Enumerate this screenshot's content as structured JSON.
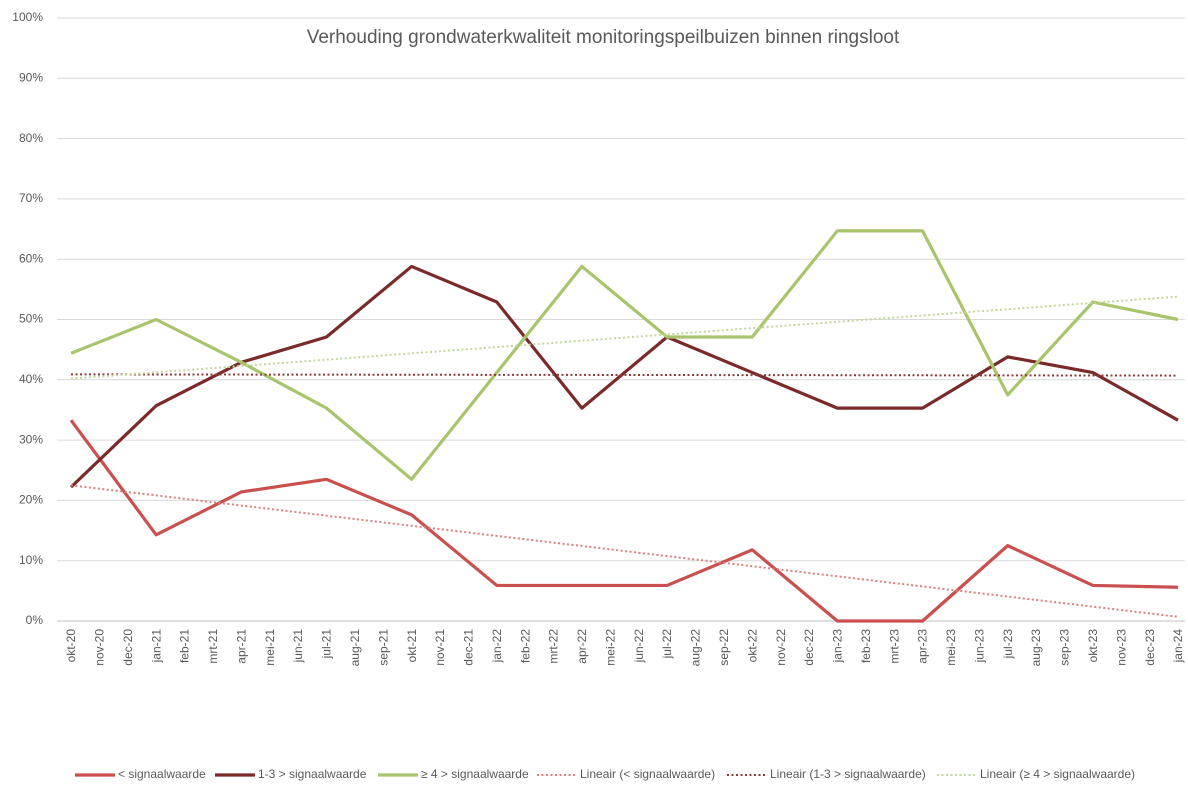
{
  "chart_data": {
    "type": "line",
    "title": "Verhouding grondwaterkwaliteit monitoringspeilbuizen binnen ringsloot",
    "categories": [
      "okt-20",
      "nov-20",
      "dec-20",
      "jan-21",
      "feb-21",
      "mrt-21",
      "apr-21",
      "mei-21",
      "jun-21",
      "jul-21",
      "aug-21",
      "sep-21",
      "okt-21",
      "nov-21",
      "dec-21",
      "jan-22",
      "feb-22",
      "mrt-22",
      "apr-22",
      "mei-22",
      "jun-22",
      "jul-22",
      "aug-22",
      "sep-22",
      "okt-22",
      "nov-22",
      "dec-22",
      "jan-23",
      "feb-23",
      "mrt-23",
      "apr-23",
      "mei-23",
      "jun-23",
      "jul-23",
      "aug-23",
      "sep-23",
      "okt-23",
      "nov-23",
      "dec-23",
      "jan-24"
    ],
    "series": [
      {
        "name": "< signaalwaarde",
        "color": "#c9504f",
        "style": "solid",
        "values": [
          33.3,
          null,
          null,
          14.3,
          null,
          null,
          21.4,
          null,
          null,
          23.5,
          null,
          null,
          17.6,
          null,
          null,
          5.9,
          null,
          null,
          5.9,
          null,
          null,
          5.9,
          null,
          null,
          11.8,
          null,
          null,
          0,
          null,
          null,
          0,
          null,
          null,
          12.5,
          null,
          null,
          5.9,
          null,
          null,
          5.6
        ]
      },
      {
        "name": "1-3 > signaalwaarde",
        "color": "#7b2a2a",
        "style": "solid",
        "values": [
          22.2,
          null,
          null,
          35.7,
          null,
          null,
          42.9,
          null,
          null,
          47.1,
          null,
          null,
          58.8,
          null,
          null,
          52.9,
          null,
          null,
          35.3,
          null,
          null,
          47.1,
          null,
          null,
          41.2,
          null,
          null,
          35.3,
          null,
          null,
          35.3,
          null,
          null,
          43.8,
          null,
          null,
          41.2,
          null,
          null,
          33.3
        ]
      },
      {
        "name": "≥ 4 > signaalwaarde",
        "color": "#a9c46c",
        "style": "solid",
        "values": [
          44.4,
          null,
          null,
          50,
          null,
          null,
          42.9,
          null,
          null,
          35.3,
          null,
          null,
          23.5,
          null,
          null,
          41.2,
          null,
          null,
          58.8,
          null,
          null,
          47.1,
          null,
          null,
          47.1,
          null,
          null,
          64.7,
          null,
          null,
          64.7,
          null,
          null,
          37.5,
          null,
          null,
          52.9,
          null,
          null,
          50
        ]
      },
      {
        "name": "Lineair (< signaalwaarde)",
        "color": "#d9807e",
        "style": "dotted",
        "values": [
          22.5,
          null,
          null,
          null,
          null,
          null,
          null,
          null,
          null,
          null,
          null,
          null,
          null,
          null,
          null,
          null,
          null,
          null,
          null,
          null,
          null,
          null,
          null,
          null,
          null,
          null,
          null,
          null,
          null,
          null,
          null,
          null,
          null,
          null,
          null,
          null,
          null,
          null,
          null,
          0.7
        ]
      },
      {
        "name": "Lineair (1-3 > signaalwaarde)",
        "color": "#8f3b3b",
        "style": "dotted",
        "values": [
          40.9,
          null,
          null,
          null,
          null,
          null,
          null,
          null,
          null,
          null,
          null,
          null,
          null,
          null,
          null,
          null,
          null,
          null,
          null,
          null,
          null,
          null,
          null,
          null,
          null,
          null,
          null,
          null,
          null,
          null,
          null,
          null,
          null,
          null,
          null,
          null,
          null,
          null,
          null,
          40.7
        ]
      },
      {
        "name": "Lineair (≥ 4 > signaalwaarde)",
        "color": "#c3d69b",
        "style": "dotted",
        "values": [
          40.2,
          null,
          null,
          null,
          null,
          null,
          null,
          null,
          null,
          null,
          null,
          null,
          null,
          null,
          null,
          null,
          null,
          null,
          null,
          null,
          null,
          null,
          null,
          null,
          null,
          null,
          null,
          null,
          null,
          null,
          null,
          null,
          null,
          null,
          null,
          null,
          null,
          null,
          null,
          53.8
        ]
      }
    ],
    "connect_gaps": true,
    "ylim": [
      0,
      100
    ],
    "yticks": [
      {
        "value": 0,
        "label": "0%"
      },
      {
        "value": 10,
        "label": "10%"
      },
      {
        "value": 20,
        "label": "20%"
      },
      {
        "value": 30,
        "label": "30%"
      },
      {
        "value": 40,
        "label": "40%"
      },
      {
        "value": 50,
        "label": "50%"
      },
      {
        "value": 60,
        "label": "60%"
      },
      {
        "value": 70,
        "label": "70%"
      },
      {
        "value": 80,
        "label": "80%"
      },
      {
        "value": 90,
        "label": "90%"
      },
      {
        "value": 100,
        "label": "100%"
      }
    ],
    "grid": true,
    "legend": "bottom"
  }
}
